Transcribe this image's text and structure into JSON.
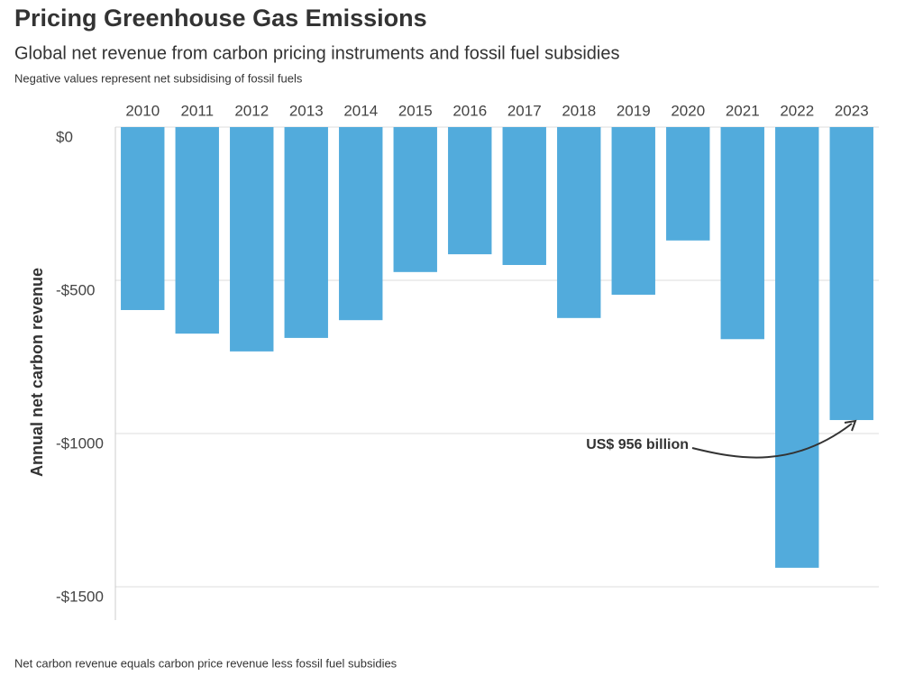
{
  "chart_data": {
    "type": "bar",
    "title": "Pricing Greenhouse Gas Emissions",
    "subtitle": "Global net revenue from carbon pricing instruments and fossil fuel subsidies",
    "note": "Negative values represent net subsidising of fossil fuels",
    "y_label": "Annual net carbon revenue",
    "footer": "Net carbon revenue equals carbon price revenue less fossil fuel subsidies",
    "annotation": "US$ 956 billion",
    "categories": [
      "2010",
      "2011",
      "2012",
      "2013",
      "2014",
      "2015",
      "2016",
      "2017",
      "2018",
      "2019",
      "2020",
      "2021",
      "2022",
      "2023"
    ],
    "values": [
      -597,
      -674,
      -732,
      -688,
      -630,
      -473,
      -415,
      -450,
      -623,
      -547,
      -370,
      -692,
      -1438,
      -956
    ],
    "color": "#52abdc",
    "ylim": [
      -1600,
      0
    ],
    "yticks": [
      {
        "value": 0,
        "label": "$0"
      },
      {
        "value": -500,
        "label": "-$500"
      },
      {
        "value": -1000,
        "label": "-$1000"
      },
      {
        "value": -1500,
        "label": "-$1500"
      }
    ],
    "grid": true
  }
}
